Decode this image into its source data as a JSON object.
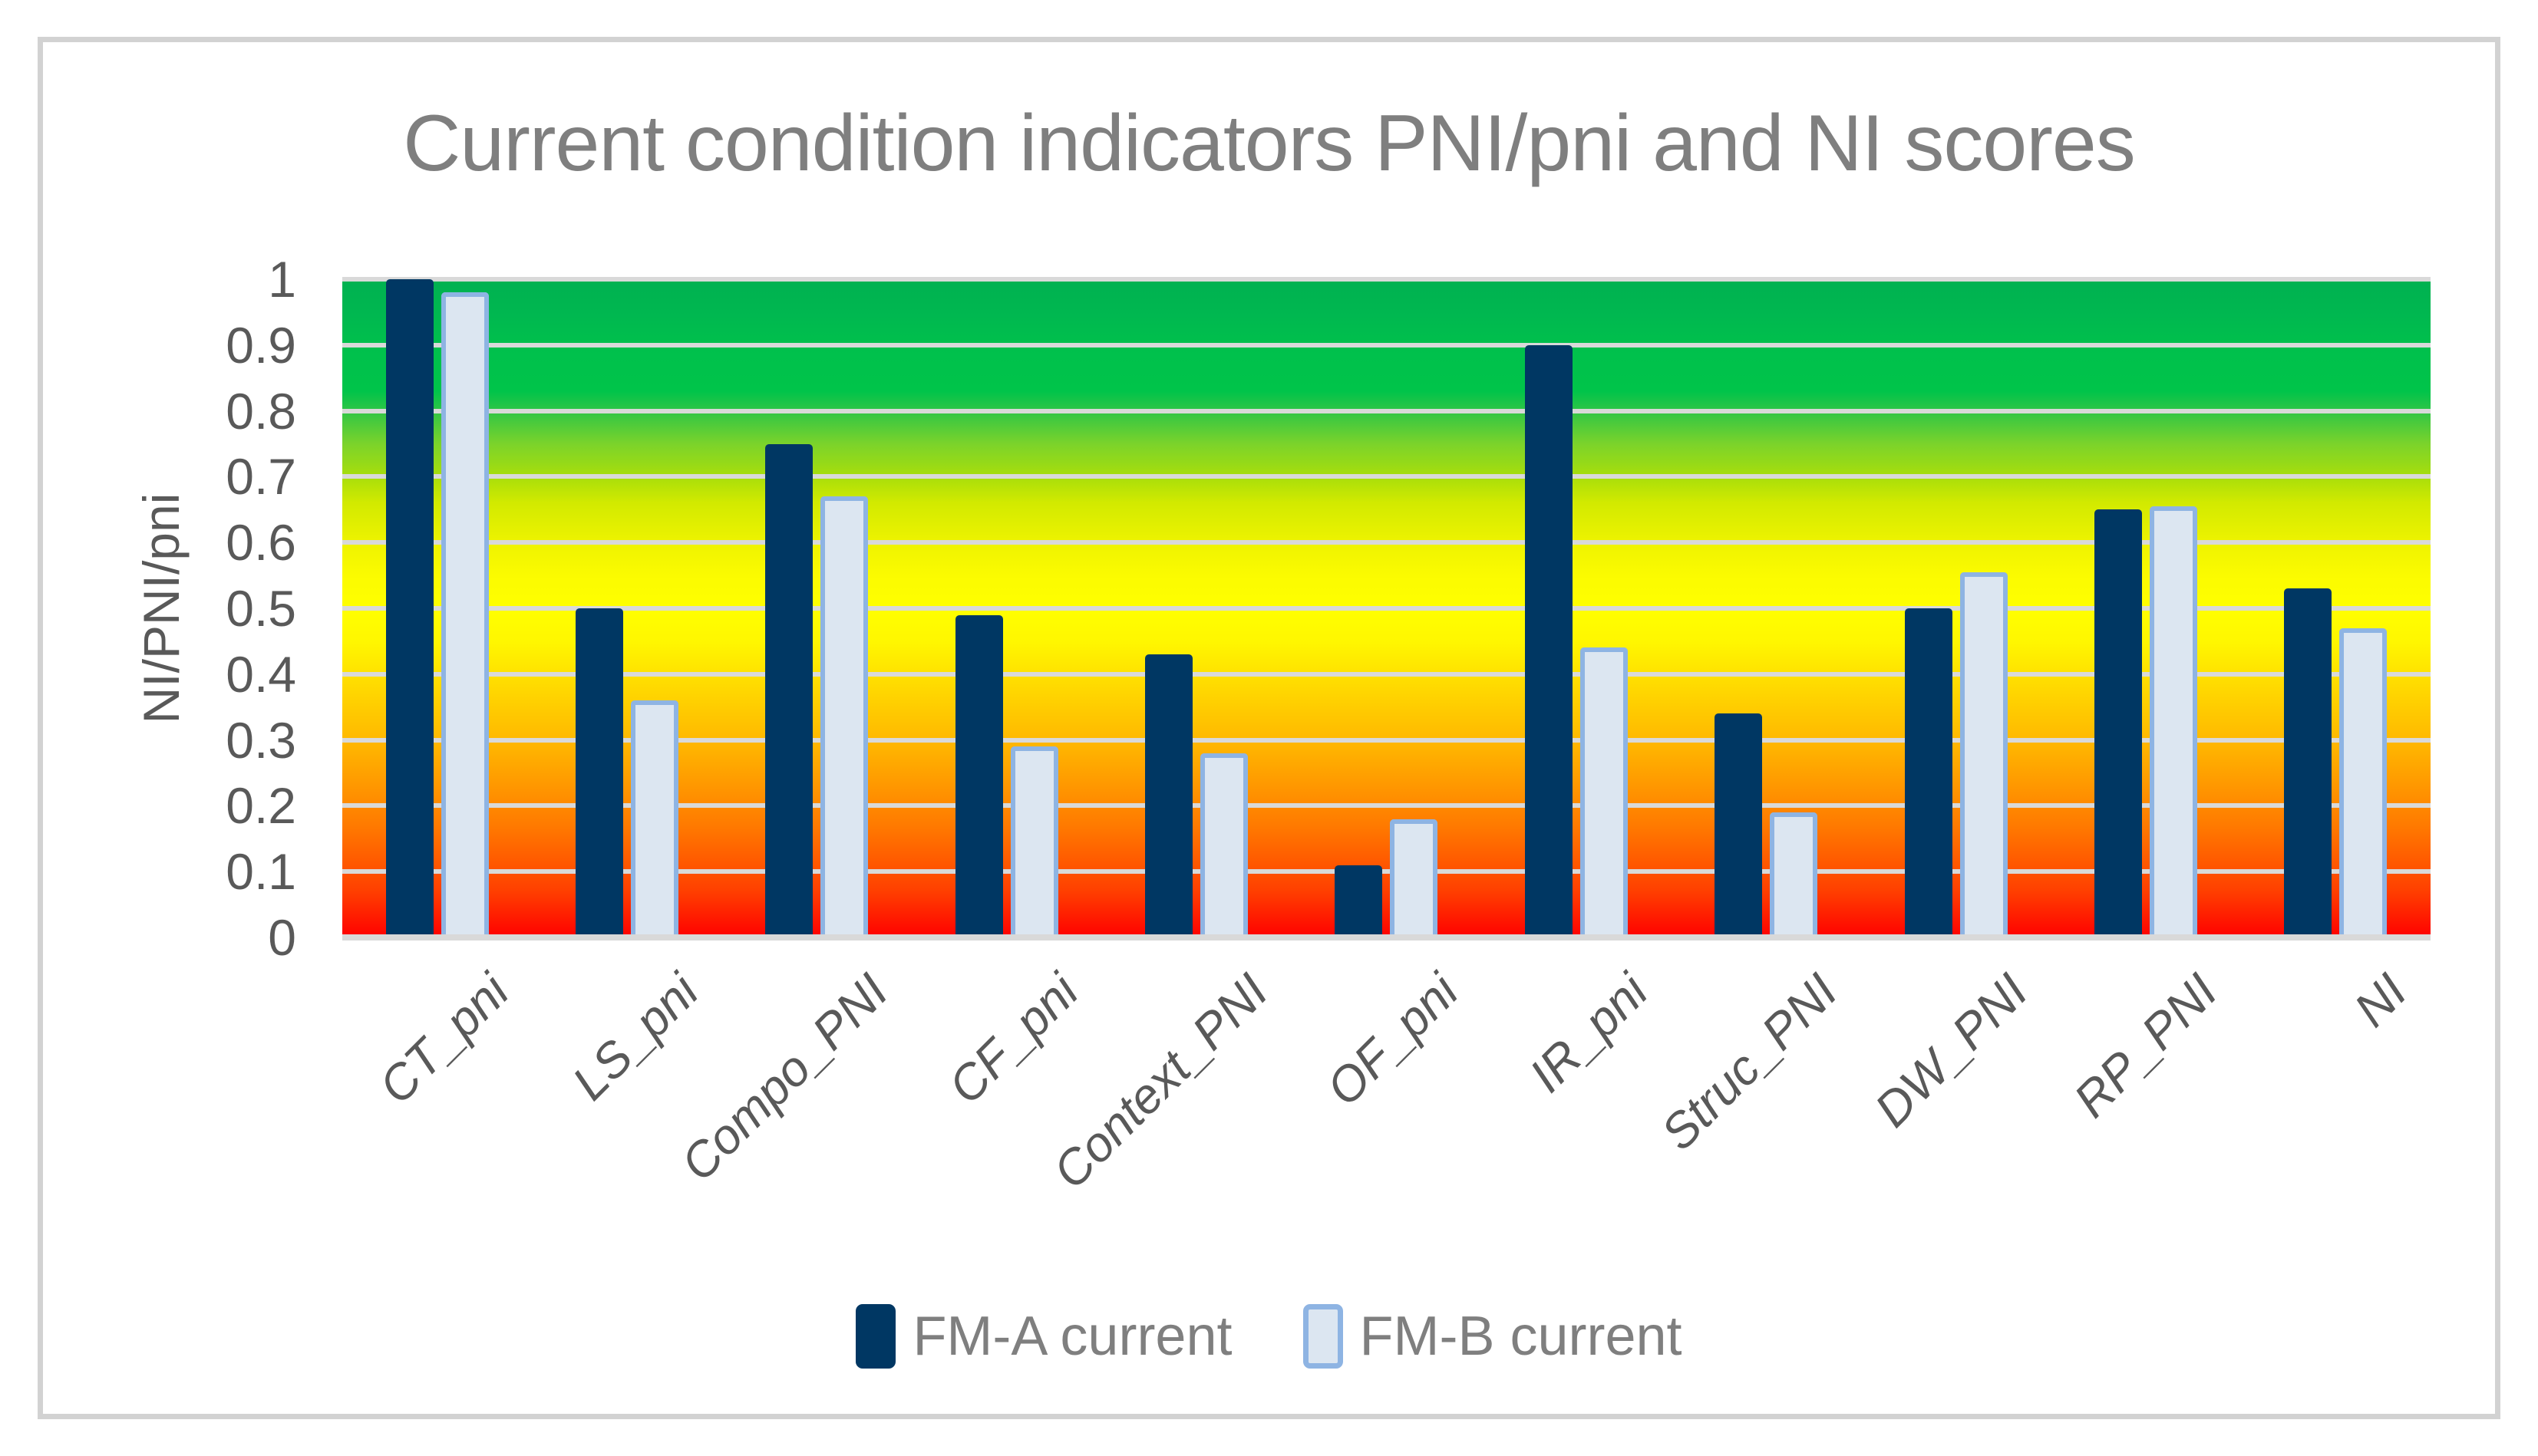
{
  "chart_data": {
    "type": "bar",
    "title": "Current condition indicators PNI/pni and NI scores",
    "ylabel": "NI/PNI/pni",
    "xlabel": "",
    "ylim": [
      0,
      1
    ],
    "yticks": [
      {
        "value": 1,
        "label": "1"
      },
      {
        "value": 0.9,
        "label": "0.9"
      },
      {
        "value": 0.8,
        "label": "0.8"
      },
      {
        "value": 0.7,
        "label": "0.7"
      },
      {
        "value": 0.6,
        "label": "0.6"
      },
      {
        "value": 0.5,
        "label": "0.5"
      },
      {
        "value": 0.4,
        "label": "0.4"
      },
      {
        "value": 0.3,
        "label": "0.3"
      },
      {
        "value": 0.2,
        "label": "0.2"
      },
      {
        "value": 0.1,
        "label": "0.1"
      },
      {
        "value": 0,
        "label": "0"
      }
    ],
    "categories": [
      "CT_pni",
      "LS_pni",
      "Compo_PNI",
      "CF_pni",
      "Context_PNI",
      "OF_pni",
      "IR_pni",
      "Struc_PNI",
      "DW_PNI",
      "RP_PNI",
      "NI"
    ],
    "series": [
      {
        "name": "FM-A current",
        "fill": "#003763",
        "border": "none",
        "values": [
          1.0,
          0.5,
          0.75,
          0.49,
          0.43,
          0.11,
          0.9,
          0.34,
          0.5,
          0.65,
          0.53
        ]
      },
      {
        "name": "FM-B current",
        "fill": "#dce6f1",
        "border": "#8eb4e3",
        "values": [
          0.98,
          0.36,
          0.67,
          0.29,
          0.28,
          0.18,
          0.44,
          0.19,
          0.555,
          0.655,
          0.47
        ]
      }
    ],
    "legend_position": "bottom",
    "grid": true,
    "gridline_color": "#d9d9d9",
    "background_gradient_bottom_to_top": [
      "#ff0000",
      "#ff7a00",
      "#ffb000",
      "#ffff00",
      "#d2ea00",
      "#7bd32b",
      "#00c44a",
      "#00b151"
    ],
    "title_color": "#7f7f7f",
    "axis_text_color": "#595959"
  }
}
